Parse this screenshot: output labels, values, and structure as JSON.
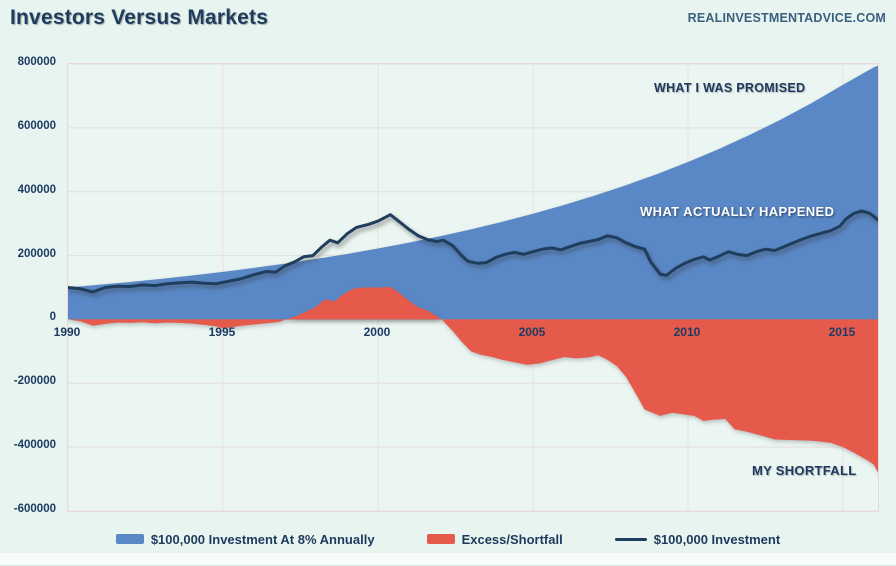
{
  "page": {
    "title": "Investors Versus Markets",
    "watermark": "REALINVESTMENTADVICE.COM"
  },
  "colors": {
    "background": "#e8f4ef",
    "plot_background": "#ebf5f1",
    "plot_border": "#e8d9db",
    "gridline_horizontal": "#e3dfdd",
    "gridline_vertical": "#f0dfe2",
    "promised_fill": "#5a88c6",
    "excess_fill": "#e65a4c",
    "actual_line": "#1f3e5d",
    "title_text": "#1d3c5e",
    "tick_text": "#1c3b63",
    "annotation_dark": "#1d3a5e",
    "annotation_light": "#ffffff"
  },
  "annotations": [
    {
      "id": "promised",
      "text": "WHAT I WAS PROMISED"
    },
    {
      "id": "actual",
      "text": "WHAT ACTUALLY HAPPENED"
    },
    {
      "id": "shortfall",
      "text": "MY SHORTFALL"
    }
  ],
  "legend": [
    {
      "label": "$100,000 Investment At 8% Annually",
      "swatch": "rect",
      "color": "#5a88c6"
    },
    {
      "label": "Excess/Shortfall",
      "swatch": "rect",
      "color": "#e65a4c"
    },
    {
      "label": "$100,000 Investment",
      "swatch": "line",
      "color": "#1f3e5d"
    }
  ],
  "chart_data": {
    "type": "area",
    "title": "Investors Versus Markets",
    "grid": true,
    "legend_position": "bottom",
    "x_axis": {
      "min": 1990,
      "max": 2016.13,
      "ticks": [
        1990,
        1995,
        2000,
        2005,
        2010,
        2015
      ]
    },
    "y_axis": {
      "min": -600000,
      "max": 800000,
      "tick_step": 200000,
      "ticks": [
        800000,
        600000,
        400000,
        200000,
        0,
        -200000,
        -400000,
        -600000
      ]
    },
    "series": [
      {
        "name": "$100,000 Investment At 8% Annually",
        "type": "area",
        "baseline": 0,
        "color": "#5a88c6",
        "points": [
          [
            1990,
            100000
          ],
          [
            1991,
            108300
          ],
          [
            1992,
            117300
          ],
          [
            1993,
            127000
          ],
          [
            1994,
            137600
          ],
          [
            1995,
            149000
          ],
          [
            1996,
            161400
          ],
          [
            1997,
            174800
          ],
          [
            1998,
            189300
          ],
          [
            1999,
            205000
          ],
          [
            2000,
            222000
          ],
          [
            2001,
            240500
          ],
          [
            2002,
            260400
          ],
          [
            2003,
            282000
          ],
          [
            2004,
            305500
          ],
          [
            2005,
            330900
          ],
          [
            2006,
            358300
          ],
          [
            2007,
            388100
          ],
          [
            2008,
            420300
          ],
          [
            2009,
            455200
          ],
          [
            2010,
            493000
          ],
          [
            2011,
            533900
          ],
          [
            2012,
            578300
          ],
          [
            2013,
            626300
          ],
          [
            2014,
            678300
          ],
          [
            2015,
            734700
          ],
          [
            2016,
            790000
          ],
          [
            2016.13,
            795000
          ]
        ]
      },
      {
        "name": "Excess/Shortfall",
        "type": "area",
        "baseline": 0,
        "color": "#e65a4c",
        "points": [
          [
            1990,
            0
          ],
          [
            1990.4,
            -6000
          ],
          [
            1990.8,
            -20000
          ],
          [
            1991.2,
            -14000
          ],
          [
            1991.6,
            -10000
          ],
          [
            1992,
            -11000
          ],
          [
            1992.4,
            -9000
          ],
          [
            1992.8,
            -12000
          ],
          [
            1993.2,
            -10000
          ],
          [
            1993.6,
            -11000
          ],
          [
            1994,
            -13000
          ],
          [
            1994.4,
            -17000
          ],
          [
            1994.8,
            -22000
          ],
          [
            1995,
            -28000
          ],
          [
            1995.3,
            -24000
          ],
          [
            1995.6,
            -20000
          ],
          [
            1996,
            -16000
          ],
          [
            1996.4,
            -12000
          ],
          [
            1996.8,
            -8000
          ],
          [
            1997.1,
            2000
          ],
          [
            1997.4,
            12000
          ],
          [
            1997.7,
            25000
          ],
          [
            1998,
            40000
          ],
          [
            1998.3,
            63000
          ],
          [
            1998.6,
            57000
          ],
          [
            1998.9,
            80000
          ],
          [
            1999.2,
            96000
          ],
          [
            1999.5,
            100000
          ],
          [
            2000,
            100000
          ],
          [
            2000.4,
            102000
          ],
          [
            2000.7,
            82000
          ],
          [
            2001,
            58000
          ],
          [
            2001.3,
            38000
          ],
          [
            2001.6,
            28000
          ],
          [
            2001.9,
            10000
          ],
          [
            2002.1,
            -5000
          ],
          [
            2002.4,
            -35000
          ],
          [
            2002.7,
            -70000
          ],
          [
            2003,
            -100000
          ],
          [
            2003.3,
            -110000
          ],
          [
            2003.7,
            -118000
          ],
          [
            2004,
            -126000
          ],
          [
            2004.4,
            -134000
          ],
          [
            2004.8,
            -142000
          ],
          [
            2005.2,
            -138000
          ],
          [
            2005.6,
            -128000
          ],
          [
            2006,
            -118000
          ],
          [
            2006.4,
            -122000
          ],
          [
            2006.8,
            -119000
          ],
          [
            2007.1,
            -112000
          ],
          [
            2007.4,
            -126000
          ],
          [
            2007.7,
            -146000
          ],
          [
            2008,
            -180000
          ],
          [
            2008.3,
            -230000
          ],
          [
            2008.6,
            -282000
          ],
          [
            2009.1,
            -302000
          ],
          [
            2009.5,
            -292000
          ],
          [
            2009.9,
            -298000
          ],
          [
            2010.2,
            -302000
          ],
          [
            2010.5,
            -318000
          ],
          [
            2010.8,
            -314000
          ],
          [
            2011.2,
            -312000
          ],
          [
            2011.5,
            -344000
          ],
          [
            2011.9,
            -352000
          ],
          [
            2012.3,
            -362000
          ],
          [
            2012.8,
            -376000
          ],
          [
            2013.4,
            -378000
          ],
          [
            2014,
            -380000
          ],
          [
            2014.6,
            -386000
          ],
          [
            2015,
            -400000
          ],
          [
            2015.4,
            -420000
          ],
          [
            2015.8,
            -442000
          ],
          [
            2016,
            -455000
          ],
          [
            2016.13,
            -480000
          ]
        ]
      },
      {
        "name": "$100,000 Investment",
        "type": "line",
        "color": "#1f3e5d",
        "stroke_width": 3,
        "points": [
          [
            1990,
            100000
          ],
          [
            1990.4,
            96000
          ],
          [
            1990.8,
            86000
          ],
          [
            1991.2,
            100000
          ],
          [
            1991.6,
            104000
          ],
          [
            1992,
            103000
          ],
          [
            1992.4,
            108000
          ],
          [
            1992.8,
            106000
          ],
          [
            1993.2,
            112000
          ],
          [
            1993.6,
            115000
          ],
          [
            1994,
            117000
          ],
          [
            1994.4,
            113000
          ],
          [
            1994.8,
            112000
          ],
          [
            1995.2,
            120000
          ],
          [
            1995.6,
            128000
          ],
          [
            1996,
            140000
          ],
          [
            1996.4,
            150000
          ],
          [
            1996.7,
            148000
          ],
          [
            1997,
            168000
          ],
          [
            1997.3,
            180000
          ],
          [
            1997.6,
            196000
          ],
          [
            1997.9,
            200000
          ],
          [
            1998.2,
            228000
          ],
          [
            1998.45,
            248000
          ],
          [
            1998.7,
            240000
          ],
          [
            1999,
            268000
          ],
          [
            1999.3,
            288000
          ],
          [
            1999.7,
            298000
          ],
          [
            2000,
            308000
          ],
          [
            2000.4,
            328000
          ],
          [
            2000.7,
            305000
          ],
          [
            2001,
            282000
          ],
          [
            2001.3,
            262000
          ],
          [
            2001.6,
            250000
          ],
          [
            2001.9,
            244000
          ],
          [
            2002.1,
            248000
          ],
          [
            2002.4,
            232000
          ],
          [
            2002.7,
            200000
          ],
          [
            2002.9,
            182000
          ],
          [
            2003.2,
            176000
          ],
          [
            2003.5,
            178000
          ],
          [
            2003.8,
            194000
          ],
          [
            2004.1,
            204000
          ],
          [
            2004.4,
            210000
          ],
          [
            2004.7,
            204000
          ],
          [
            2005,
            212000
          ],
          [
            2005.3,
            220000
          ],
          [
            2005.6,
            224000
          ],
          [
            2005.9,
            218000
          ],
          [
            2006.2,
            228000
          ],
          [
            2006.5,
            238000
          ],
          [
            2006.8,
            244000
          ],
          [
            2007.1,
            250000
          ],
          [
            2007.4,
            262000
          ],
          [
            2007.7,
            256000
          ],
          [
            2008,
            240000
          ],
          [
            2008.3,
            228000
          ],
          [
            2008.6,
            220000
          ],
          [
            2008.8,
            180000
          ],
          [
            2009.1,
            142000
          ],
          [
            2009.3,
            138000
          ],
          [
            2009.6,
            160000
          ],
          [
            2009.9,
            176000
          ],
          [
            2010.2,
            188000
          ],
          [
            2010.5,
            196000
          ],
          [
            2010.7,
            186000
          ],
          [
            2011,
            198000
          ],
          [
            2011.3,
            212000
          ],
          [
            2011.6,
            204000
          ],
          [
            2011.9,
            200000
          ],
          [
            2012.2,
            212000
          ],
          [
            2012.5,
            220000
          ],
          [
            2012.8,
            216000
          ],
          [
            2013.1,
            228000
          ],
          [
            2013.4,
            240000
          ],
          [
            2013.7,
            252000
          ],
          [
            2014,
            262000
          ],
          [
            2014.3,
            270000
          ],
          [
            2014.6,
            278000
          ],
          [
            2014.9,
            292000
          ],
          [
            2015.1,
            315000
          ],
          [
            2015.35,
            332000
          ],
          [
            2015.6,
            340000
          ],
          [
            2015.85,
            333000
          ],
          [
            2016,
            322000
          ],
          [
            2016.13,
            312000
          ]
        ]
      }
    ]
  }
}
